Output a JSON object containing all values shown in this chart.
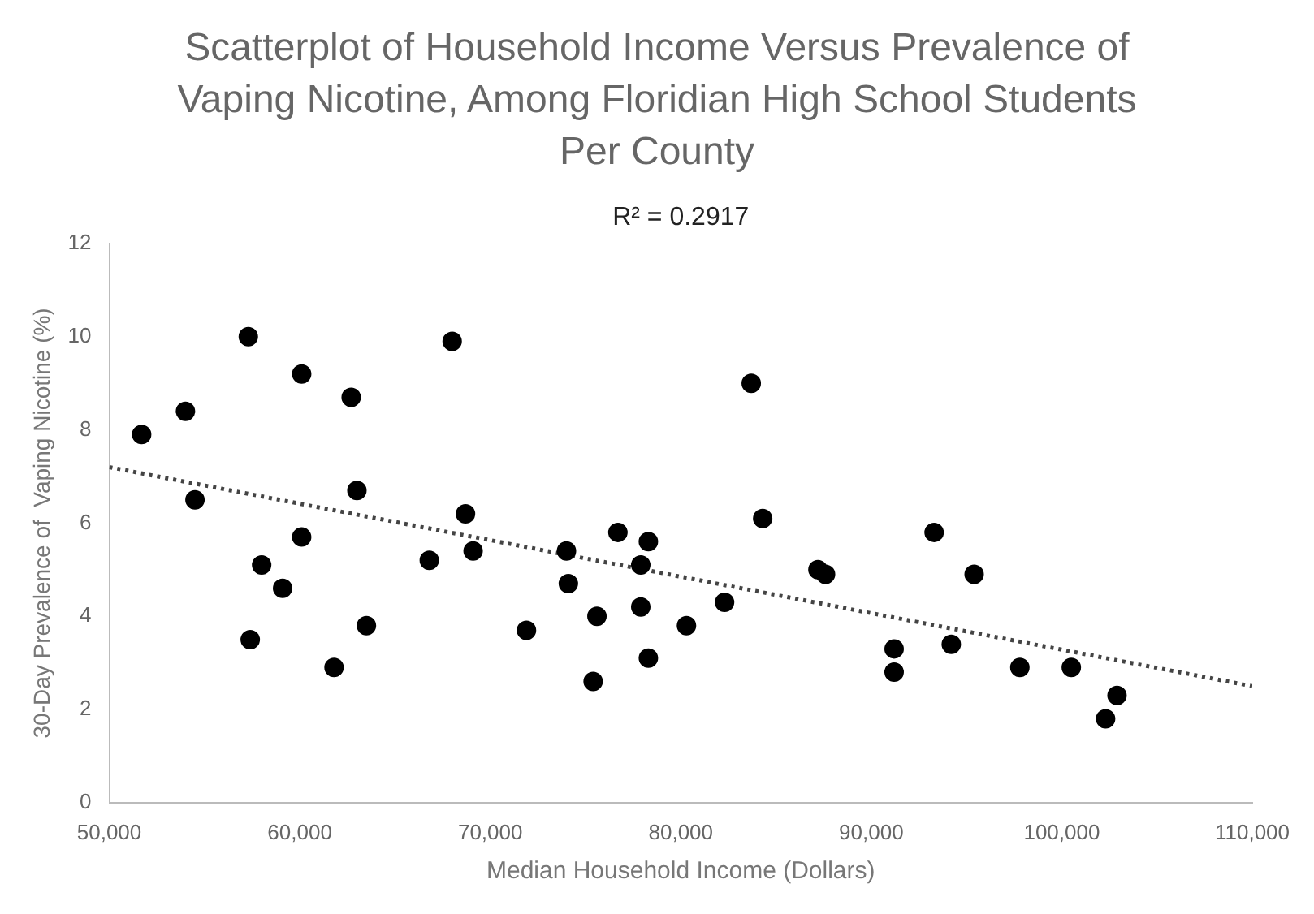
{
  "chart_data": {
    "type": "scatter",
    "title": "Scatterplot of Household Income Versus Prevalence of Vaping Nicotine, Among Floridian High School Students Per County",
    "xlabel": "Median Household Income (Dollars)",
    "ylabel": "30-Day Prevalence of  Vaping Nicotine (%)",
    "annotations": [
      "R² = 0.2917"
    ],
    "series": [
      {
        "color": "#000000",
        "x": [
          51700,
          54000,
          54500,
          57300,
          57400,
          58000,
          59100,
          60100,
          60100,
          61800,
          62700,
          63000,
          63500,
          66800,
          68000,
          68700,
          69100,
          71900,
          74000,
          74100,
          75400,
          75600,
          76700,
          77900,
          77900,
          78300,
          78300,
          80300,
          82300,
          83700,
          84300,
          87200,
          87600,
          91200,
          91200,
          93300,
          94200,
          95400,
          97800,
          100500,
          102900,
          102300
        ],
        "values": [
          7.9,
          8.4,
          6.5,
          10.0,
          3.5,
          5.1,
          4.6,
          9.2,
          5.7,
          2.9,
          8.7,
          6.7,
          3.8,
          5.2,
          9.9,
          6.2,
          5.4,
          3.7,
          5.4,
          4.7,
          2.6,
          4.0,
          5.8,
          5.1,
          4.2,
          5.6,
          3.1,
          3.8,
          4.3,
          9.0,
          6.1,
          5.0,
          4.9,
          3.3,
          2.8,
          5.8,
          3.4,
          4.9,
          2.9,
          2.9,
          2.3,
          1.8
        ],
        "marker": "circle"
      },
      {
        "type": "line",
        "color": "#444444",
        "x": [
          50000,
          110000
        ],
        "values": [
          7.2,
          2.5
        ],
        "line_style": "dotted",
        "marker": "none"
      }
    ],
    "xlim": [
      50000,
      110000
    ],
    "xticks": [
      {
        "value": 50000,
        "label": "50,000"
      },
      {
        "value": 60000,
        "label": "60,000"
      },
      {
        "value": 70000,
        "label": "70,000"
      },
      {
        "value": 80000,
        "label": "80,000"
      },
      {
        "value": 90000,
        "label": "90,000"
      },
      {
        "value": 100000,
        "label": "100,000"
      },
      {
        "value": 110000,
        "label": "110,000"
      }
    ],
    "ylim": [
      0,
      12
    ],
    "yticks": [
      0,
      2,
      4,
      6,
      8,
      10,
      12
    ],
    "grid": false,
    "legend": false
  }
}
